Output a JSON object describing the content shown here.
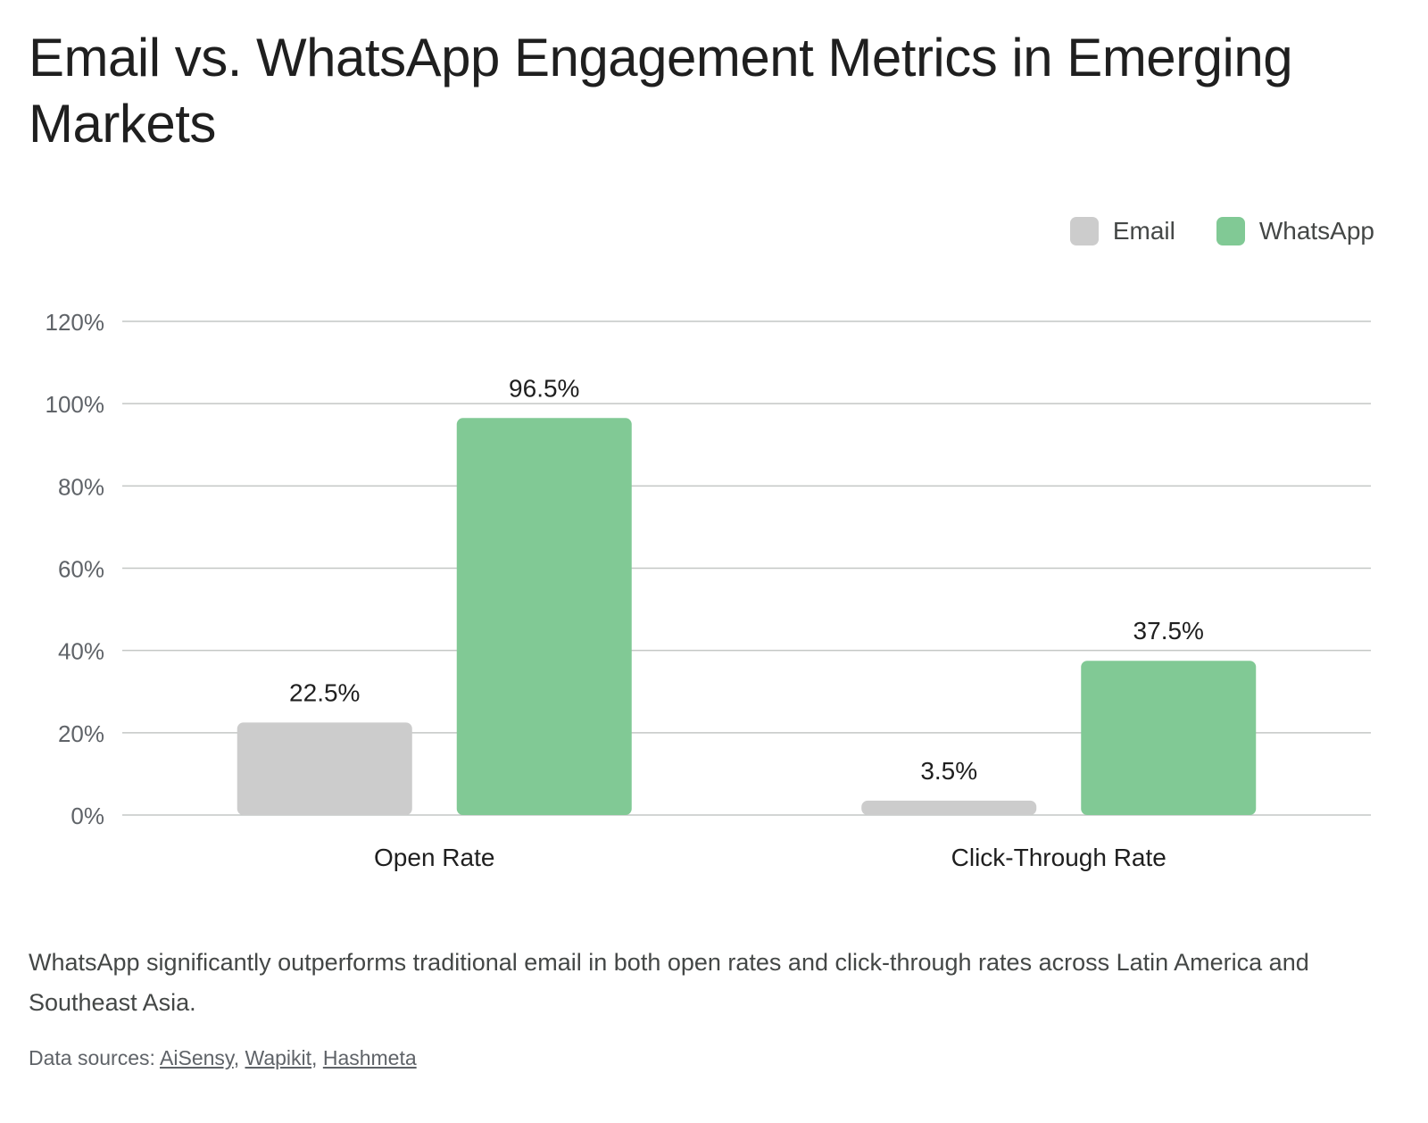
{
  "title": "Email vs. WhatsApp Engagement Metrics in Emerging Markets",
  "caption": "WhatsApp significantly outperforms traditional email in both open rates and click-through rates across Latin America and Southeast Asia.",
  "sources": {
    "prefix": "Data sources: ",
    "links": [
      "AiSensy",
      "Wapikit",
      "Hashmeta"
    ]
  },
  "colors": {
    "email": "#cccccc",
    "whatsapp": "#81c995",
    "grid": "#c4c7c5",
    "axis_text": "#5f6368",
    "label_text": "#1f1f1f"
  },
  "chart_data": {
    "type": "bar",
    "title": "Email vs. WhatsApp Engagement Metrics in Emerging Markets",
    "categories": [
      "Open Rate",
      "Click-Through Rate"
    ],
    "series": [
      {
        "name": "Email",
        "values": [
          22.5,
          3.5
        ],
        "labels": [
          "22.5%",
          "3.5%"
        ]
      },
      {
        "name": "WhatsApp",
        "values": [
          96.5,
          37.5
        ],
        "labels": [
          "96.5%",
          "37.5%"
        ]
      }
    ],
    "ylim": [
      0,
      120
    ],
    "yticks": [
      0,
      20,
      40,
      60,
      80,
      100,
      120
    ],
    "ytick_labels": [
      "0%",
      "20%",
      "40%",
      "60%",
      "80%",
      "100%",
      "120%"
    ],
    "xlabel": "",
    "ylabel": "",
    "grid": true,
    "legend": "top-right"
  }
}
